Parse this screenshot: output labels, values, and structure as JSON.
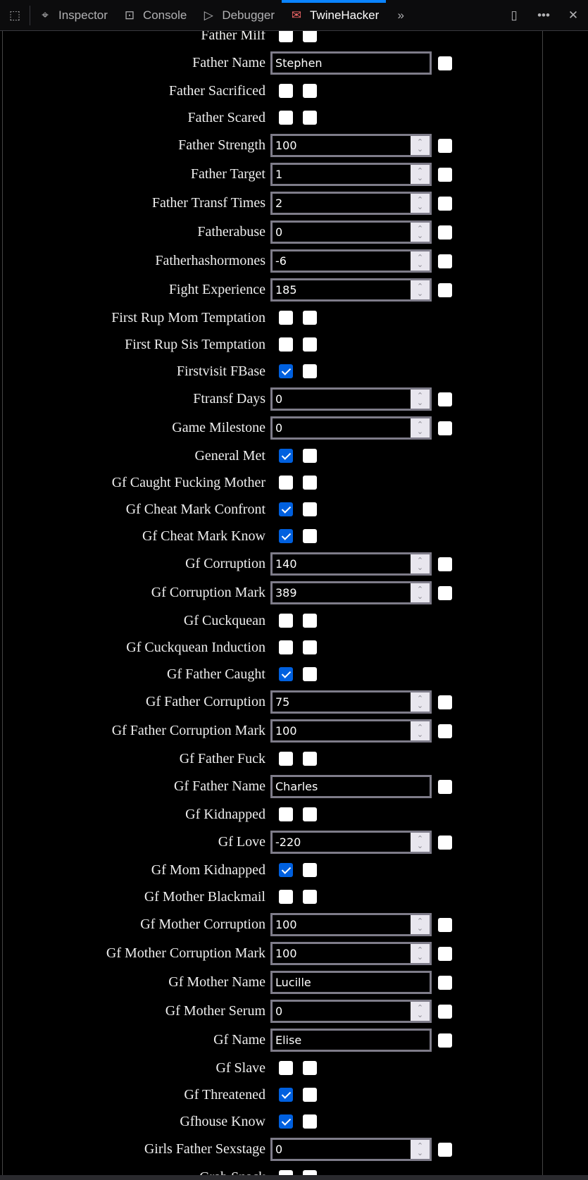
{
  "toolbar": {
    "tabs": [
      {
        "label": "Inspector",
        "icon": "inspector-icon"
      },
      {
        "label": "Console",
        "icon": "console-icon"
      },
      {
        "label": "Debugger",
        "icon": "debugger-icon"
      },
      {
        "label": "TwineHacker",
        "icon": "twinehacker-icon",
        "active": true
      }
    ],
    "accent": "#0a84ff"
  },
  "rows": [
    {
      "label": "Father Milf",
      "type": "bool",
      "checked": false
    },
    {
      "label": "Father Name",
      "type": "text",
      "value": "Stephen"
    },
    {
      "label": "Father Sacrificed",
      "type": "bool",
      "checked": false
    },
    {
      "label": "Father Scared",
      "type": "bool",
      "checked": false
    },
    {
      "label": "Father Strength",
      "type": "number",
      "value": "100"
    },
    {
      "label": "Father Target",
      "type": "number",
      "value": "1"
    },
    {
      "label": "Father Transf Times",
      "type": "number",
      "value": "2"
    },
    {
      "label": "Fatherabuse",
      "type": "number",
      "value": "0"
    },
    {
      "label": "Fatherhashormones",
      "type": "number",
      "value": "-6"
    },
    {
      "label": "Fight Experience",
      "type": "number",
      "value": "185"
    },
    {
      "label": "First Rup Mom Temptation",
      "type": "bool",
      "checked": false
    },
    {
      "label": "First Rup Sis Temptation",
      "type": "bool",
      "checked": false
    },
    {
      "label": "Firstvisit FBase",
      "type": "bool",
      "checked": true
    },
    {
      "label": "Ftransf Days",
      "type": "number",
      "value": "0"
    },
    {
      "label": "Game Milestone",
      "type": "number",
      "value": "0"
    },
    {
      "label": "General Met",
      "type": "bool",
      "checked": true
    },
    {
      "label": "Gf Caught Fucking Mother",
      "type": "bool",
      "checked": false
    },
    {
      "label": "Gf Cheat Mark Confront",
      "type": "bool",
      "checked": true
    },
    {
      "label": "Gf Cheat Mark Know",
      "type": "bool",
      "checked": true
    },
    {
      "label": "Gf Corruption",
      "type": "number",
      "value": "140"
    },
    {
      "label": "Gf Corruption Mark",
      "type": "number",
      "value": "389"
    },
    {
      "label": "Gf Cuckquean",
      "type": "bool",
      "checked": false
    },
    {
      "label": "Gf Cuckquean Induction",
      "type": "bool",
      "checked": false
    },
    {
      "label": "Gf Father Caught",
      "type": "bool",
      "checked": true
    },
    {
      "label": "Gf Father Corruption",
      "type": "number",
      "value": "75"
    },
    {
      "label": "Gf Father Corruption Mark",
      "type": "number",
      "value": "100"
    },
    {
      "label": "Gf Father Fuck",
      "type": "bool",
      "checked": false
    },
    {
      "label": "Gf Father Name",
      "type": "text",
      "value": "Charles"
    },
    {
      "label": "Gf Kidnapped",
      "type": "bool",
      "checked": false
    },
    {
      "label": "Gf Love",
      "type": "number",
      "value": "-220"
    },
    {
      "label": "Gf Mom Kidnapped",
      "type": "bool",
      "checked": true
    },
    {
      "label": "Gf Mother Blackmail",
      "type": "bool",
      "checked": false
    },
    {
      "label": "Gf Mother Corruption",
      "type": "number",
      "value": "100"
    },
    {
      "label": "Gf Mother Corruption Mark",
      "type": "number",
      "value": "100"
    },
    {
      "label": "Gf Mother Name",
      "type": "text",
      "value": "Lucille"
    },
    {
      "label": "Gf Mother Serum",
      "type": "number",
      "value": "0"
    },
    {
      "label": "Gf Name",
      "type": "text",
      "value": "Elise"
    },
    {
      "label": "Gf Slave",
      "type": "bool",
      "checked": false
    },
    {
      "label": "Gf Threatened",
      "type": "bool",
      "checked": true
    },
    {
      "label": "Gfhouse Know",
      "type": "bool",
      "checked": true
    },
    {
      "label": "Girls Father Sexstage",
      "type": "number",
      "value": "0"
    },
    {
      "label": "Grab Snack",
      "type": "bool",
      "checked": false
    }
  ]
}
